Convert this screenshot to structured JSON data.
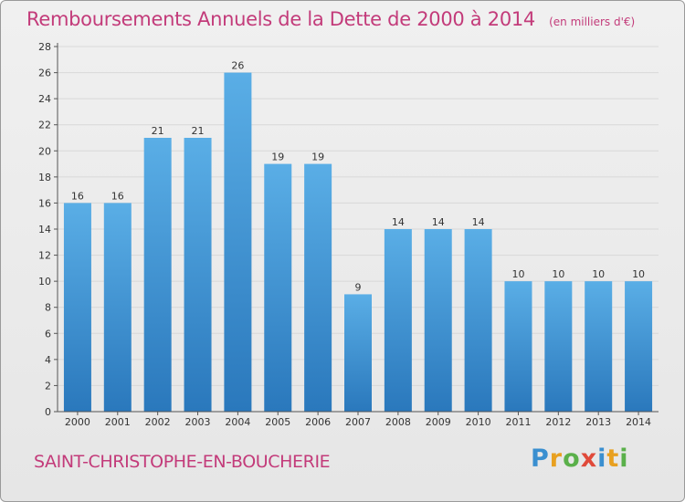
{
  "title": "Remboursements Annuels de la Dette de 2000 à 2014",
  "unit_note": "(en milliers d'€)",
  "commune": "SAINT-CHRISTOPHE-EN-BOUCHERIE",
  "logo_text": "Proxiti",
  "colors": {
    "title": "#c33b7a",
    "bar_light": "#5aaee6",
    "bar_dark": "#2a78bc",
    "axis": "#555555",
    "grid": "#d8d8d8"
  },
  "chart_data": {
    "type": "bar",
    "title": "Remboursements Annuels de la Dette de 2000 à 2014",
    "categories": [
      "2000",
      "2001",
      "2002",
      "2003",
      "2004",
      "2005",
      "2006",
      "2007",
      "2008",
      "2009",
      "2010",
      "2011",
      "2012",
      "2013",
      "2014"
    ],
    "values": [
      16,
      16,
      21,
      21,
      26,
      19,
      19,
      9,
      14,
      14,
      14,
      10,
      10,
      10,
      10
    ],
    "ylim": [
      0,
      28
    ],
    "yticks": [
      0,
      2,
      4,
      6,
      8,
      10,
      12,
      14,
      16,
      18,
      20,
      22,
      24,
      26,
      28
    ],
    "grid": true,
    "data_labels": true
  }
}
